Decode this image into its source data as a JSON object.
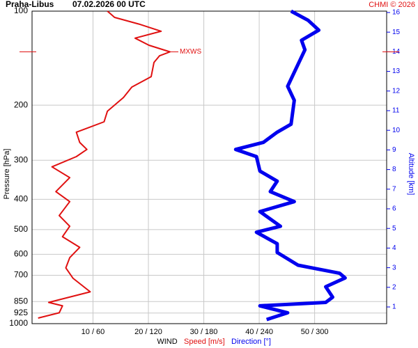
{
  "chart_data": {
    "type": "line",
    "title": "Praha-Libus",
    "subtitle": "07.02.2026 00 UTC",
    "credit": "CHMI © 2026",
    "y_label": "Pressure [hPa]",
    "y2_label": "Altitude [km]",
    "x_label": "WIND",
    "y_scale": "log",
    "grid": true,
    "ylim": [
      1000,
      100
    ],
    "yticks": [
      100,
      200,
      300,
      400,
      500,
      600,
      700,
      850,
      925,
      1000
    ],
    "y2lim": [
      0.15,
      16.07
    ],
    "y2ticks": [
      1,
      2,
      3,
      4,
      5,
      6,
      7,
      8,
      9,
      10,
      11,
      12,
      13,
      14,
      15,
      16
    ],
    "xlim": [
      -1,
      63
    ],
    "x2lim": [
      -6,
      378
    ],
    "xticks": [
      {
        "value": 10,
        "label": "10 / 60"
      },
      {
        "value": 20,
        "label": "20 / 120"
      },
      {
        "value": 30,
        "label": "30 / 180"
      },
      {
        "value": 40,
        "label": "40 / 240"
      },
      {
        "value": 50,
        "label": "50 / 300"
      }
    ],
    "annotation": {
      "text": "MXWS",
      "pressure": 135,
      "speed": 23.9
    },
    "series": [
      {
        "name": "Speed [m/s]",
        "color": "#e01010",
        "axis": "x",
        "y": [
          100,
          104.7,
          110,
          116,
          122,
          128.6,
          135,
          139,
          146,
          162,
          175,
          189,
          209,
          226,
          244,
          263,
          277,
          292,
          315,
          341,
          378,
          407,
          451,
          488,
          527,
          570,
          615,
          663,
          716,
          791,
          855,
          877,
          923,
          960
        ],
        "values": [
          12.6,
          13.9,
          18.3,
          22.3,
          17.6,
          20.1,
          23.9,
          22,
          21,
          20.5,
          17,
          15.5,
          12.6,
          12,
          7,
          7.6,
          8.9,
          7,
          2.6,
          5.8,
          3.3,
          5.8,
          3.9,
          5.8,
          4.5,
          7.6,
          5.8,
          5.1,
          6.4,
          9.5,
          2,
          4.5,
          3.9,
          0.1
        ]
      },
      {
        "name": "Direction [°]",
        "color": "#0000ee",
        "axis": "x2",
        "y": [
          100,
          107,
          115,
          124,
          133,
          148,
          174,
          193,
          230,
          244,
          263,
          277,
          292,
          325,
          350,
          378,
          407,
          438,
          488,
          510,
          555,
          592,
          650,
          690,
          714,
          762,
          823,
          855,
          877,
          923,
          970
        ],
        "values": [
          274.5,
          293,
          304.5,
          285.8,
          289.5,
          282,
          270.8,
          278,
          274.5,
          259.5,
          244.5,
          214.5,
          237,
          240.8,
          259.5,
          252,
          278,
          240.8,
          263,
          237,
          259.5,
          259.5,
          282,
          327,
          333,
          312,
          319.5,
          312,
          240.8,
          270.8,
          248
        ]
      }
    ]
  }
}
